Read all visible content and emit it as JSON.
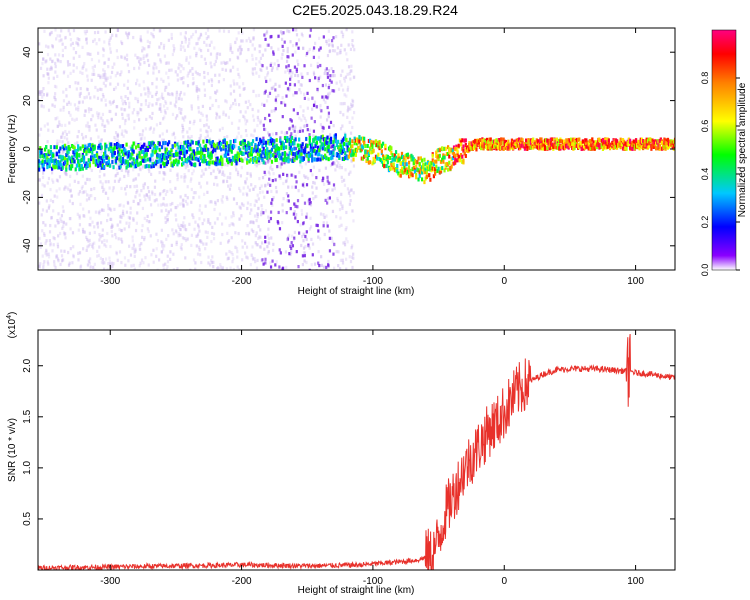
{
  "title": "C2E5.2025.043.18.29.R24",
  "colors": {
    "axis": "#000000",
    "snr_line": "#e8312b",
    "spectro_low": "#e6dcf5",
    "spectro_mid": "#7a1ee6"
  },
  "chart_data": [
    {
      "type": "heatmap",
      "xlabel": "Height of straight line (km)",
      "ylabel": "Frequency (Hz)",
      "xlim": [
        -355,
        130
      ],
      "ylim": [
        -50,
        50
      ],
      "xticks": [
        -300,
        -200,
        -100,
        0,
        100
      ],
      "yticks": [
        -40,
        -20,
        0,
        20,
        40
      ],
      "colorbar": {
        "label": "Normalized spectral amplitude",
        "range": [
          0,
          1
        ],
        "ticks": [
          "0.0",
          "0.2",
          "0.4",
          "0.6",
          "0.8"
        ],
        "colormap": [
          "#ffffff",
          "#8a00ff",
          "#0000ff",
          "#00c8ff",
          "#00ff00",
          "#ffff00",
          "#ff8000",
          "#ff0000",
          "#ff0080"
        ]
      },
      "ridge": [
        {
          "x": -355,
          "f": -4
        },
        {
          "x": -300,
          "f": -3
        },
        {
          "x": -250,
          "f": -2
        },
        {
          "x": -200,
          "f": -1
        },
        {
          "x": -150,
          "f": 0
        },
        {
          "x": -130,
          "f": 1
        },
        {
          "x": -110,
          "f": 0
        },
        {
          "x": -95,
          "f": -2
        },
        {
          "x": -85,
          "f": -5
        },
        {
          "x": -75,
          "f": -7
        },
        {
          "x": -60,
          "f": -9
        },
        {
          "x": -50,
          "f": -5
        },
        {
          "x": -40,
          "f": -3
        },
        {
          "x": -30,
          "f": 0
        },
        {
          "x": -20,
          "f": 2
        },
        {
          "x": 0,
          "f": 2
        },
        {
          "x": 50,
          "f": 2
        },
        {
          "x": 100,
          "f": 2
        },
        {
          "x": 130,
          "f": 2
        }
      ],
      "grid": false
    },
    {
      "type": "line",
      "xlabel": "Height of straight line (km)",
      "ylabel": "SNR (10 * v/v)",
      "scale_note": "(x10^4)",
      "xlim": [
        -355,
        130
      ],
      "ylim": [
        0,
        2.35
      ],
      "xticks": [
        -300,
        -200,
        -100,
        0,
        100
      ],
      "yticks": [
        "0.5",
        "1.0",
        "1.5",
        "2.0"
      ],
      "series": [
        {
          "x": [
            -355,
            -300,
            -250,
            -200,
            -150,
            -110,
            -80,
            -65,
            -55,
            -50,
            -45,
            -40,
            -35,
            -30,
            -25,
            -20,
            -15,
            -10,
            -5,
            0,
            5,
            10,
            20,
            30,
            40,
            50,
            60,
            70,
            80,
            90,
            95,
            100,
            110,
            120,
            130
          ],
          "values": [
            0.02,
            0.03,
            0.04,
            0.05,
            0.04,
            0.05,
            0.08,
            0.1,
            0.15,
            0.3,
            0.55,
            0.7,
            0.85,
            1.0,
            1.1,
            1.2,
            1.3,
            1.4,
            1.45,
            1.55,
            1.65,
            1.75,
            1.85,
            1.92,
            1.96,
            1.97,
            1.97,
            1.97,
            1.96,
            1.95,
            1.95,
            1.93,
            1.92,
            1.9,
            1.88
          ]
        }
      ],
      "grid": false
    }
  ]
}
